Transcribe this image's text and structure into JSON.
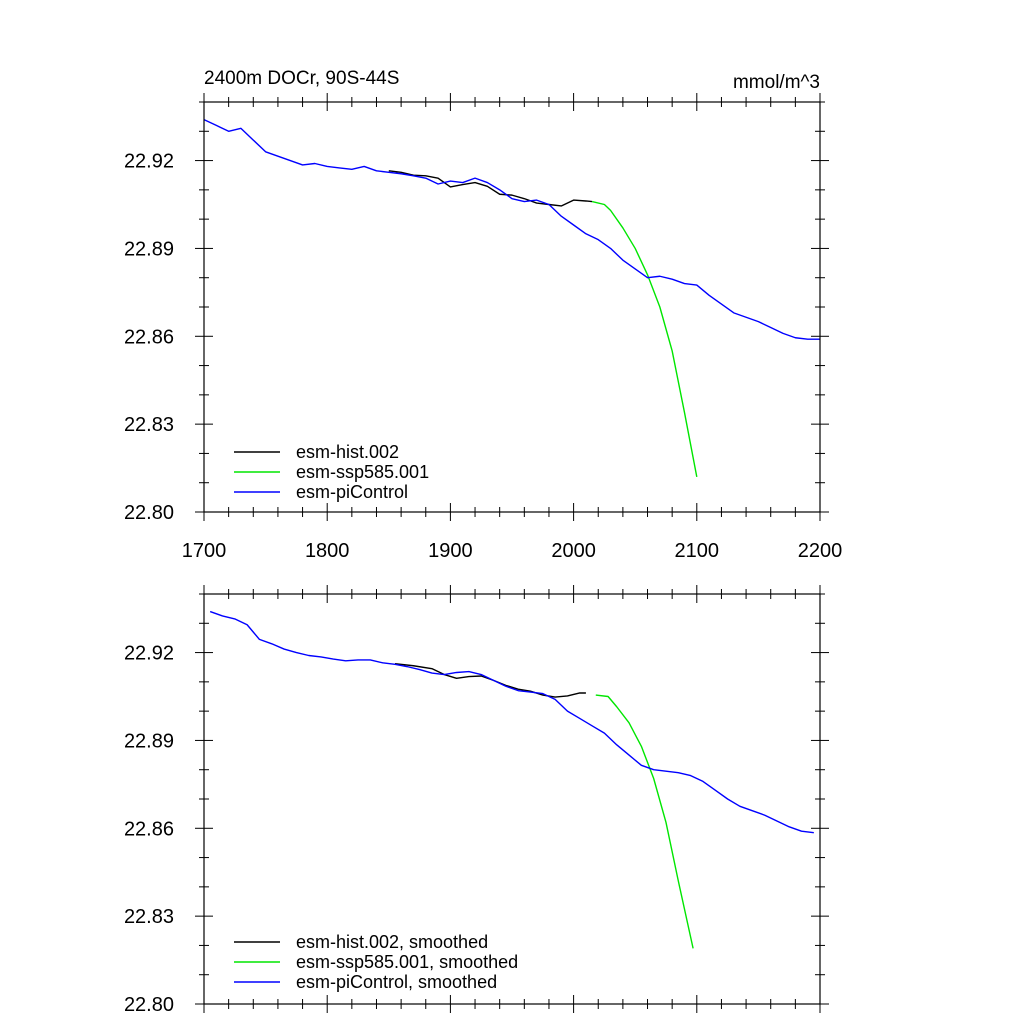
{
  "chart_data": [
    {
      "type": "line",
      "title": "2400m DOCr, 90S-44S",
      "units": "mmol/m^3",
      "xlabel": "",
      "ylabel": "",
      "xlim": [
        1700,
        2200
      ],
      "ylim": [
        22.8,
        22.94
      ],
      "x_ticks": [
        1700,
        1800,
        1900,
        2000,
        2100,
        2200
      ],
      "x_tick_labels": [
        "1700",
        "1800",
        "1900",
        "2000",
        "2100",
        "2200"
      ],
      "y_ticks": [
        22.8,
        22.83,
        22.86,
        22.89,
        22.92
      ],
      "y_tick_labels": [
        "22.80",
        "22.83",
        "22.86",
        "22.89",
        "22.92"
      ],
      "grid": false,
      "legend_position": "bottom-left",
      "series": [
        {
          "name": "esm-hist.002",
          "color": "#000000",
          "points": [
            [
              1850,
              22.9165
            ],
            [
              1860,
              22.916
            ],
            [
              1870,
              22.915
            ],
            [
              1880,
              22.9148
            ],
            [
              1890,
              22.914
            ],
            [
              1900,
              22.911
            ],
            [
              1910,
              22.9118
            ],
            [
              1920,
              22.9125
            ],
            [
              1930,
              22.9112
            ],
            [
              1940,
              22.9085
            ],
            [
              1950,
              22.9082
            ],
            [
              1960,
              22.907
            ],
            [
              1970,
              22.9055
            ],
            [
              1980,
              22.905
            ],
            [
              1990,
              22.9045
            ],
            [
              2000,
              22.9065
            ],
            [
              2010,
              22.9062
            ],
            [
              2015,
              22.906
            ]
          ]
        },
        {
          "name": "esm-ssp585.001",
          "color": "#00e600",
          "points": [
            [
              2015,
              22.906
            ],
            [
              2025,
              22.905
            ],
            [
              2030,
              22.903
            ],
            [
              2040,
              22.897
            ],
            [
              2050,
              22.89
            ],
            [
              2060,
              22.881
            ],
            [
              2070,
              22.87
            ],
            [
              2080,
              22.855
            ],
            [
              2090,
              22.834
            ],
            [
              2100,
              22.812
            ]
          ]
        },
        {
          "name": "esm-piControl",
          "color": "#0000ff",
          "points": [
            [
              1700,
              22.934
            ],
            [
              1710,
              22.932
            ],
            [
              1720,
              22.93
            ],
            [
              1730,
              22.931
            ],
            [
              1740,
              22.927
            ],
            [
              1750,
              22.923
            ],
            [
              1760,
              22.9215
            ],
            [
              1770,
              22.92
            ],
            [
              1780,
              22.9185
            ],
            [
              1790,
              22.919
            ],
            [
              1800,
              22.918
            ],
            [
              1810,
              22.9175
            ],
            [
              1820,
              22.917
            ],
            [
              1830,
              22.918
            ],
            [
              1840,
              22.9165
            ],
            [
              1850,
              22.916
            ],
            [
              1860,
              22.9155
            ],
            [
              1870,
              22.9148
            ],
            [
              1880,
              22.914
            ],
            [
              1890,
              22.912
            ],
            [
              1900,
              22.913
            ],
            [
              1910,
              22.9125
            ],
            [
              1920,
              22.914
            ],
            [
              1930,
              22.9125
            ],
            [
              1940,
              22.91
            ],
            [
              1950,
              22.907
            ],
            [
              1960,
              22.906
            ],
            [
              1970,
              22.9065
            ],
            [
              1980,
              22.905
            ],
            [
              1990,
              22.901
            ],
            [
              2000,
              22.898
            ],
            [
              2010,
              22.895
            ],
            [
              2020,
              22.893
            ],
            [
              2030,
              22.89
            ],
            [
              2040,
              22.886
            ],
            [
              2050,
              22.883
            ],
            [
              2060,
              22.88
            ],
            [
              2070,
              22.8805
            ],
            [
              2080,
              22.8795
            ],
            [
              2090,
              22.878
            ],
            [
              2100,
              22.8775
            ],
            [
              2110,
              22.874
            ],
            [
              2120,
              22.871
            ],
            [
              2130,
              22.868
            ],
            [
              2140,
              22.8665
            ],
            [
              2150,
              22.865
            ],
            [
              2160,
              22.863
            ],
            [
              2170,
              22.861
            ],
            [
              2180,
              22.8595
            ],
            [
              2190,
              22.859
            ],
            [
              2200,
              22.859
            ]
          ]
        }
      ]
    },
    {
      "type": "line",
      "title": "",
      "units": "",
      "xlabel": "",
      "ylabel": "",
      "xlim": [
        1700,
        2200
      ],
      "ylim": [
        22.8,
        22.94
      ],
      "x_ticks": [
        1700,
        1800,
        1900,
        2000,
        2100,
        2200
      ],
      "x_tick_labels": [],
      "y_ticks": [
        22.8,
        22.83,
        22.86,
        22.89,
        22.92
      ],
      "y_tick_labels": [
        "22.80",
        "22.83",
        "22.86",
        "22.89",
        "22.92"
      ],
      "grid": false,
      "legend_position": "bottom-left",
      "series": [
        {
          "name": "esm-hist.002, smoothed",
          "color": "#000000",
          "points": [
            [
              1855,
              22.9162
            ],
            [
              1870,
              22.9155
            ],
            [
              1885,
              22.9145
            ],
            [
              1895,
              22.9125
            ],
            [
              1905,
              22.9112
            ],
            [
              1915,
              22.9118
            ],
            [
              1925,
              22.912
            ],
            [
              1935,
              22.9105
            ],
            [
              1945,
              22.9088
            ],
            [
              1955,
              22.9075
            ],
            [
              1965,
              22.9068
            ],
            [
              1975,
              22.9055
            ],
            [
              1985,
              22.9048
            ],
            [
              1995,
              22.9052
            ],
            [
              2005,
              22.9062
            ],
            [
              2010,
              22.9062
            ]
          ]
        },
        {
          "name": "esm-ssp585.001, smoothed",
          "color": "#00e600",
          "points": [
            [
              2018,
              22.9055
            ],
            [
              2028,
              22.905
            ],
            [
              2035,
              22.9015
            ],
            [
              2045,
              22.896
            ],
            [
              2055,
              22.888
            ],
            [
              2065,
              22.877
            ],
            [
              2075,
              22.862
            ],
            [
              2085,
              22.842
            ],
            [
              2097,
              22.819
            ]
          ]
        },
        {
          "name": "esm-piControl, smoothed",
          "color": "#0000ff",
          "points": [
            [
              1705,
              22.934
            ],
            [
              1715,
              22.9325
            ],
            [
              1725,
              22.9315
            ],
            [
              1735,
              22.9295
            ],
            [
              1745,
              22.9245
            ],
            [
              1755,
              22.923
            ],
            [
              1765,
              22.9212
            ],
            [
              1775,
              22.92
            ],
            [
              1785,
              22.919
            ],
            [
              1795,
              22.9185
            ],
            [
              1805,
              22.9178
            ],
            [
              1815,
              22.9172
            ],
            [
              1825,
              22.9175
            ],
            [
              1835,
              22.9175
            ],
            [
              1845,
              22.9165
            ],
            [
              1855,
              22.916
            ],
            [
              1865,
              22.9152
            ],
            [
              1875,
              22.9142
            ],
            [
              1885,
              22.913
            ],
            [
              1895,
              22.9125
            ],
            [
              1905,
              22.9132
            ],
            [
              1915,
              22.9135
            ],
            [
              1925,
              22.9125
            ],
            [
              1935,
              22.9105
            ],
            [
              1945,
              22.9085
            ],
            [
              1955,
              22.907
            ],
            [
              1965,
              22.9065
            ],
            [
              1975,
              22.906
            ],
            [
              1985,
              22.904
            ],
            [
              1995,
              22.9
            ],
            [
              2005,
              22.8975
            ],
            [
              2015,
              22.895
            ],
            [
              2025,
              22.8925
            ],
            [
              2035,
              22.8885
            ],
            [
              2045,
              22.885
            ],
            [
              2055,
              22.8815
            ],
            [
              2065,
              22.88
            ],
            [
              2075,
              22.8795
            ],
            [
              2085,
              22.879
            ],
            [
              2095,
              22.878
            ],
            [
              2105,
              22.876
            ],
            [
              2115,
              22.873
            ],
            [
              2125,
              22.87
            ],
            [
              2135,
              22.8675
            ],
            [
              2145,
              22.866
            ],
            [
              2155,
              22.8645
            ],
            [
              2165,
              22.8625
            ],
            [
              2175,
              22.8605
            ],
            [
              2185,
              22.859
            ],
            [
              2195,
              22.8585
            ]
          ]
        }
      ]
    }
  ]
}
